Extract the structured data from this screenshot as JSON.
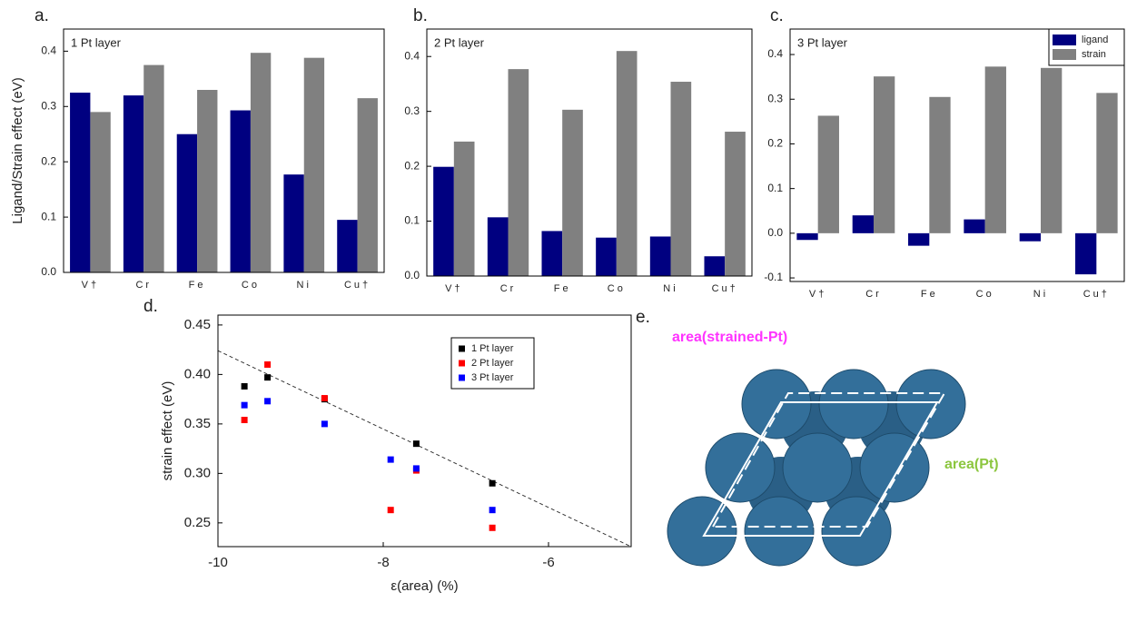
{
  "chart_data": [
    {
      "type": "bar",
      "panel": "a.",
      "title": "1 Pt layer",
      "ylabel": "Ligand/Strain effect (eV)",
      "categories": [
        "V†",
        "Cr",
        "Fe",
        "Co",
        "Ni",
        "Cu†"
      ],
      "series": [
        {
          "color": "#000080",
          "values": [
            0.325,
            0.32,
            0.25,
            0.293,
            0.177,
            0.095
          ]
        },
        {
          "color": "#808080",
          "values": [
            0.29,
            0.375,
            0.33,
            0.397,
            0.388,
            0.315
          ]
        }
      ],
      "ylim": [
        0,
        0.44
      ],
      "yticks": [
        {
          "value": 0,
          "label": "0.0"
        },
        0.1,
        0.2,
        0.3,
        0.4
      ]
    },
    {
      "type": "bar",
      "panel": "b.",
      "title": "2 Pt layer",
      "categories": [
        "V†",
        "Cr",
        "Fe",
        "Co",
        "Ni",
        "Cu†"
      ],
      "series": [
        {
          "color": "#000080",
          "values": [
            0.199,
            0.107,
            0.082,
            0.07,
            0.072,
            0.036
          ]
        },
        {
          "color": "#808080",
          "values": [
            0.245,
            0.377,
            0.303,
            0.41,
            0.354,
            0.263
          ]
        }
      ],
      "ylim": [
        0,
        0.45
      ],
      "yticks": [
        {
          "value": 0,
          "label": "0.0"
        },
        0.1,
        0.2,
        0.3,
        0.4
      ]
    },
    {
      "type": "bar",
      "panel": "c.",
      "title": "3 Pt layer",
      "legend": "upper right",
      "categories": [
        "V†",
        "Cr",
        "Fe",
        "Co",
        "Ni",
        "Cu†"
      ],
      "series": [
        {
          "name": "ligand",
          "color": "#000080",
          "values": [
            -0.015,
            0.04,
            -0.028,
            0.031,
            -0.018,
            -0.092
          ]
        },
        {
          "name": "strain",
          "color": "#808080",
          "values": [
            0.263,
            0.351,
            0.305,
            0.373,
            0.37,
            0.314
          ]
        }
      ],
      "ylim": [
        -0.108,
        0.457
      ],
      "yticks": [
        -0.1,
        {
          "value": 0,
          "label": "0.0"
        },
        0.1,
        0.2,
        0.3,
        0.4
      ]
    },
    {
      "type": "scatter",
      "panel": "d.",
      "xlabel": "ε(area) (%)",
      "ylabel": "strain effect (eV)",
      "legend": "upper right",
      "series": [
        {
          "name": "1 Pt layer",
          "color": "#000000",
          "x": [
            -9.68,
            -9.4,
            -8.71,
            -7.6,
            -6.68
          ],
          "values": [
            0.388,
            0.397,
            0.375,
            0.33,
            0.29
          ]
        },
        {
          "name": "2 Pt layer",
          "color": "#ff0000",
          "x": [
            -9.68,
            -9.4,
            -8.71,
            -7.91,
            -7.6,
            -6.68
          ],
          "values": [
            0.354,
            0.41,
            0.376,
            0.263,
            0.303,
            0.245
          ]
        },
        {
          "name": "3 Pt layer",
          "color": "#0000ff",
          "x": [
            -9.68,
            -9.4,
            -8.71,
            -7.91,
            -7.6,
            -6.68
          ],
          "values": [
            0.369,
            0.373,
            0.35,
            0.314,
            0.305,
            0.263
          ]
        }
      ],
      "fit": {
        "x": [
          -10,
          -5
        ],
        "values": [
          0.424,
          0.226
        ]
      },
      "xlim": [
        -10,
        -5
      ],
      "ylim": [
        0.226,
        0.46
      ],
      "xticks": [
        -10,
        -8,
        -6
      ],
      "yticks": [
        0.25,
        {
          "value": 0.3,
          "label": "0.30"
        },
        0.35,
        {
          "value": 0.4,
          "label": "0.40"
        },
        0.45
      ]
    }
  ],
  "diagram": {
    "panel": "e.",
    "labels": [
      "area(strained-Pt)",
      "area(Pt)"
    ]
  }
}
